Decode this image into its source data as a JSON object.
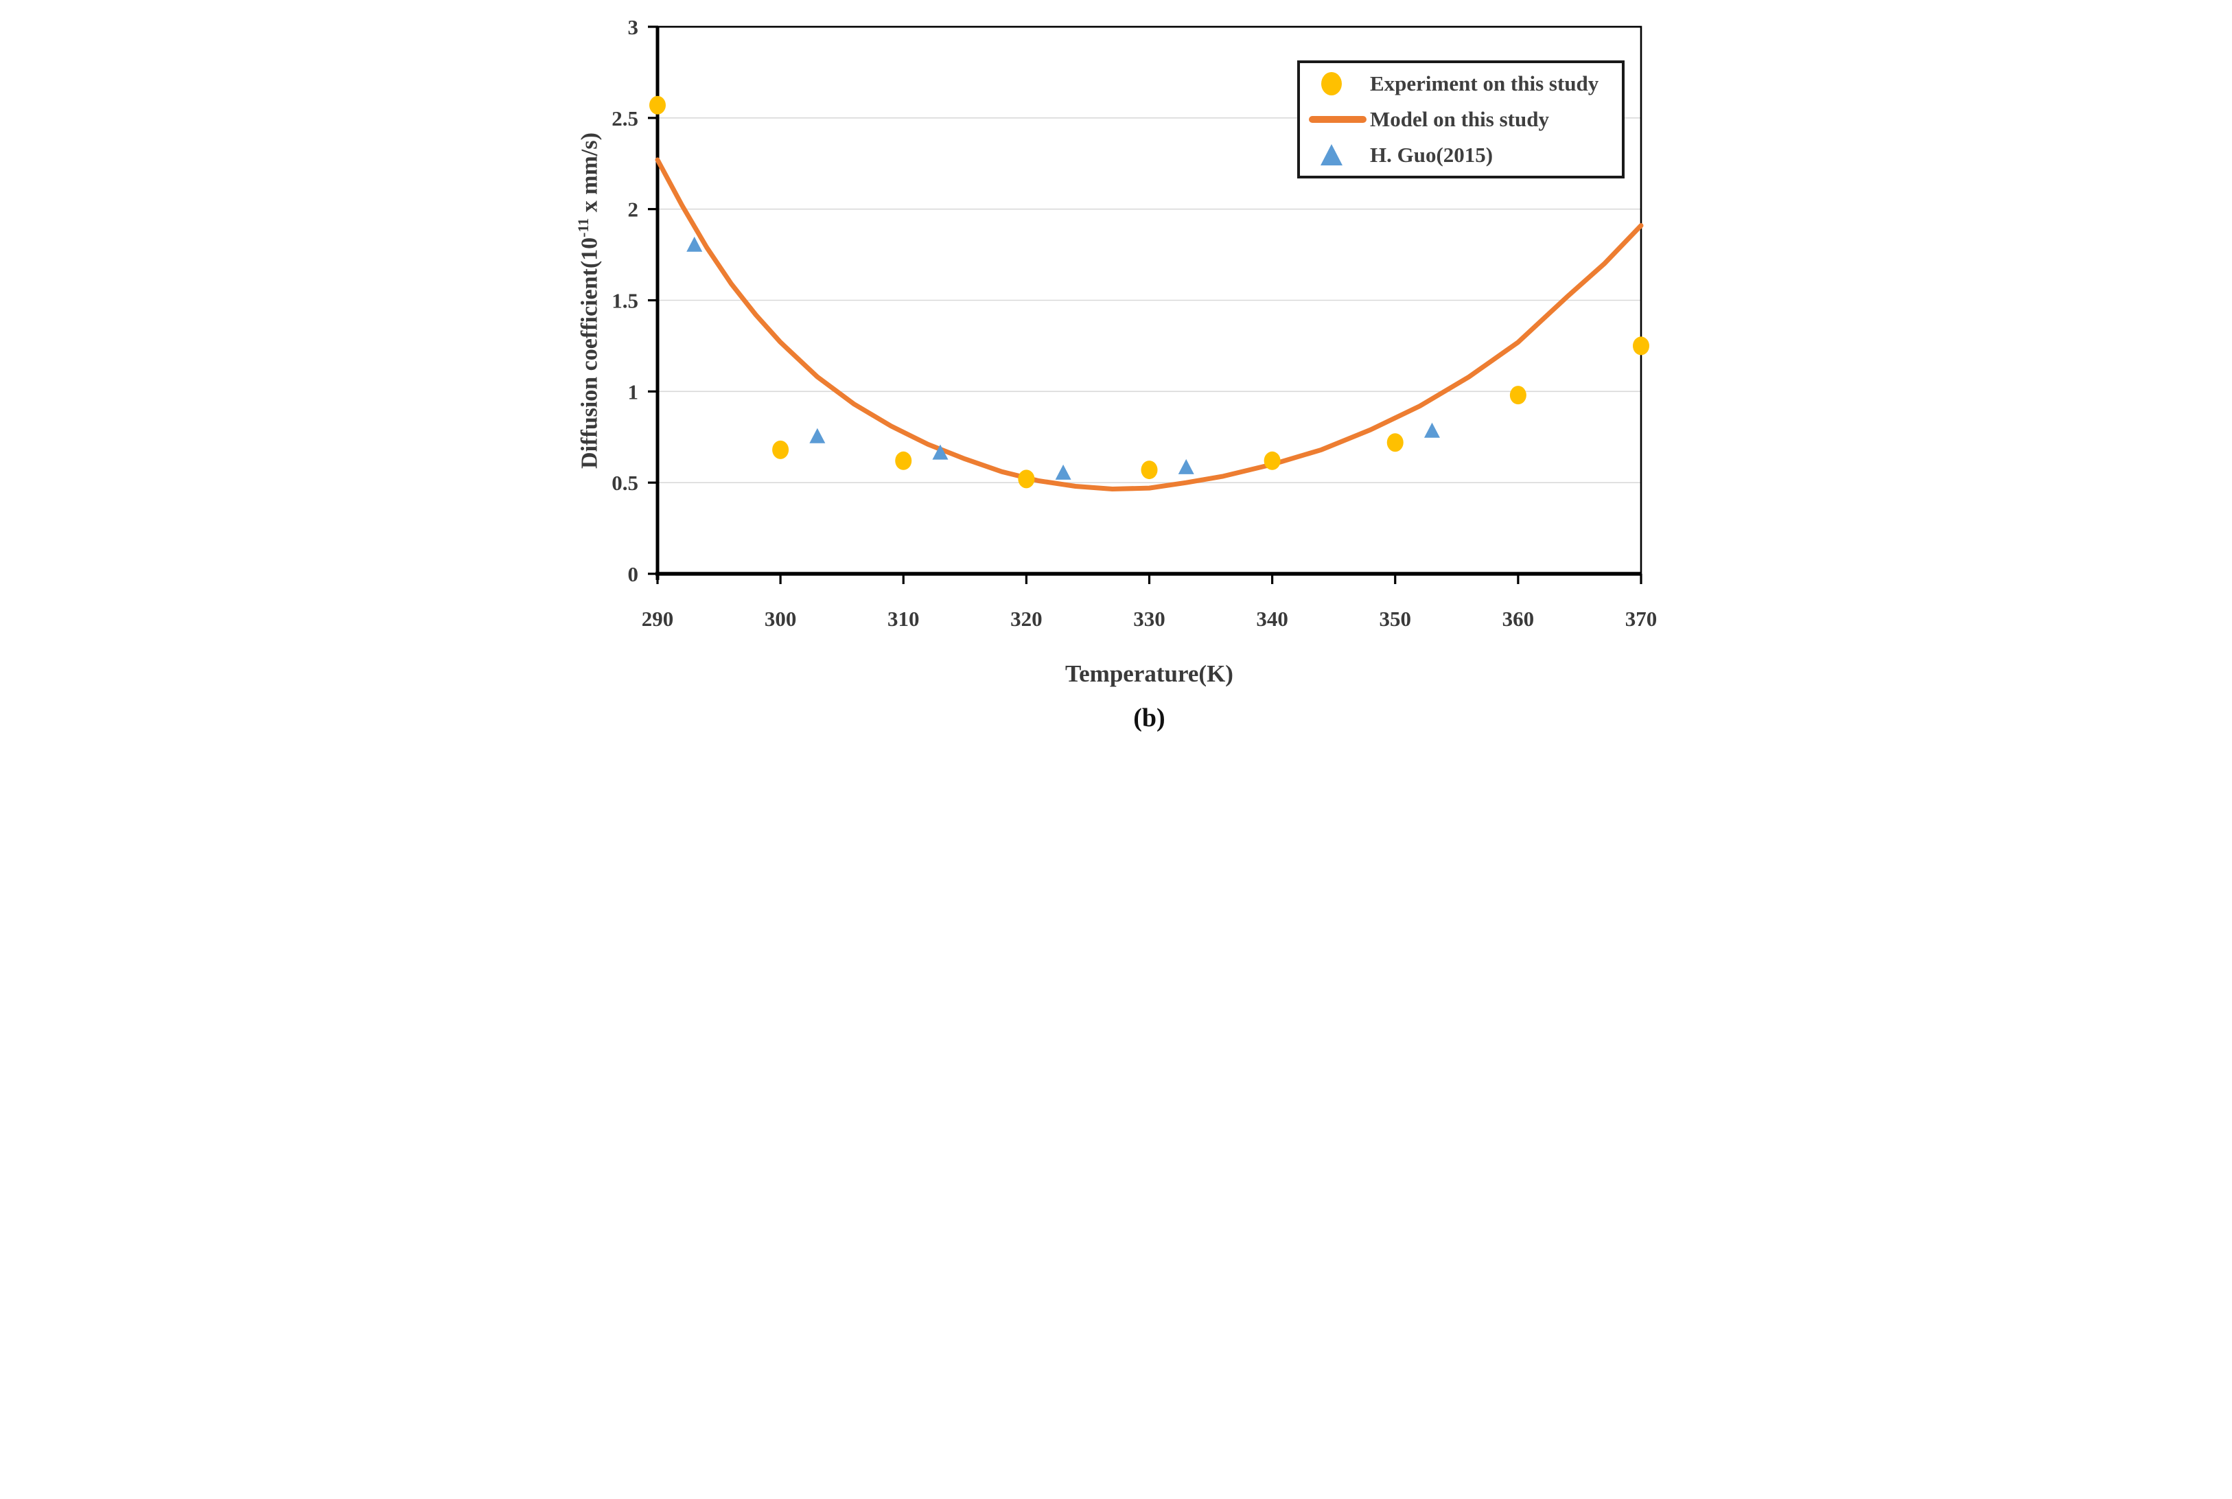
{
  "figure": {
    "caption": "(b)"
  },
  "colors": {
    "experiment": "#FFC000",
    "model": "#ED7D31",
    "guo": "#5B9BD5",
    "axis": "#000000",
    "grid": "#D9D9D9",
    "text": "#3A3A3A",
    "background": "#FFFFFF"
  },
  "axes": {
    "xlabel": "Temperature(K)",
    "ylabel_prefix": "Diffusion coefficient(10",
    "ylabel_superscript": "-11",
    "ylabel_suffix": " x mm/s)"
  },
  "chart_data": {
    "type": "scatter+line",
    "title": "",
    "xlabel": "Temperature(K)",
    "ylabel": "Diffusion coefficient(10^-11 x mm/s)",
    "xlim": [
      290,
      370
    ],
    "ylim": [
      0,
      3
    ],
    "xticks": [
      "290",
      "300",
      "310",
      "320",
      "330",
      "340",
      "350",
      "360",
      "370"
    ],
    "yticks": [
      "0",
      "0.5",
      "1",
      "1.5",
      "2",
      "2.5",
      "3"
    ],
    "grid": "horizontal",
    "legend_position": "top-right",
    "series": [
      {
        "name": "Experiment on this study",
        "type": "scatter",
        "marker": "circle",
        "color": "#FFC000",
        "x": [
          290,
          300,
          310,
          320,
          330,
          340,
          350,
          360,
          370
        ],
        "y": [
          2.57,
          0.68,
          0.62,
          0.52,
          0.57,
          0.62,
          0.72,
          0.98,
          1.25
        ]
      },
      {
        "name": "Model on this study",
        "type": "line",
        "marker": "none",
        "color": "#ED7D31",
        "x": [
          290,
          292,
          294,
          296,
          298,
          300,
          303,
          306,
          309,
          312,
          315,
          318,
          321,
          324,
          327,
          330,
          333,
          336,
          340,
          344,
          348,
          352,
          356,
          360,
          364,
          367,
          370
        ],
        "y": [
          2.27,
          2.02,
          1.79,
          1.59,
          1.42,
          1.27,
          1.08,
          0.93,
          0.81,
          0.71,
          0.63,
          0.56,
          0.51,
          0.48,
          0.465,
          0.47,
          0.5,
          0.535,
          0.6,
          0.68,
          0.79,
          0.92,
          1.08,
          1.27,
          1.52,
          1.7,
          1.91
        ]
      },
      {
        "name": "H. Guo(2015)",
        "type": "scatter",
        "marker": "triangle",
        "color": "#5B9BD5",
        "x": [
          293,
          303,
          313,
          323,
          333,
          353
        ],
        "y": [
          1.8,
          0.75,
          0.66,
          0.55,
          0.58,
          0.78
        ]
      }
    ]
  }
}
